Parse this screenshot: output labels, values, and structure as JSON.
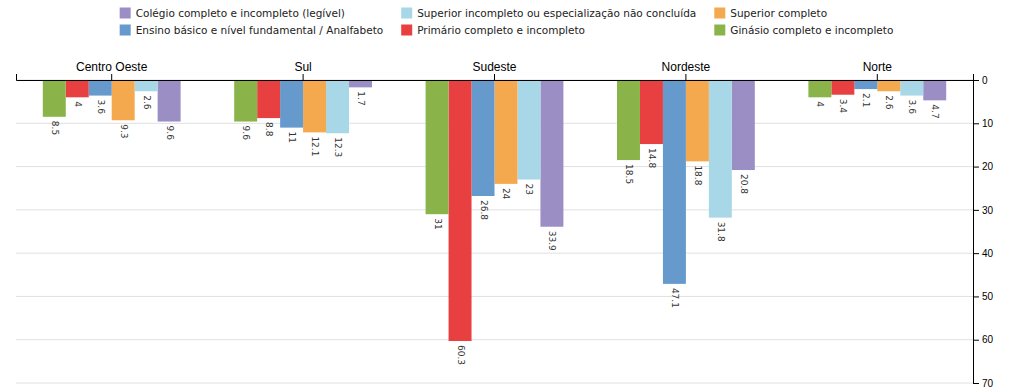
{
  "chart_data": {
    "type": "bar",
    "categories": [
      "Norte",
      "Nordeste",
      "Sudeste",
      "Sul",
      "Centro Oeste"
    ],
    "series": [
      {
        "name": "Colégio completo e incompleto (legível)",
        "color": "#9b8ec4",
        "values": [
          4.7,
          20.8,
          33.9,
          1.7,
          9.6
        ]
      },
      {
        "name": "Superior incompleto ou especialização não concluída",
        "color": "#a8d8e8",
        "values": [
          3.6,
          31.8,
          23.0,
          12.3,
          2.6
        ]
      },
      {
        "name": "Superior completo",
        "color": "#f5a94e",
        "values": [
          2.6,
          18.8,
          24.0,
          12.1,
          9.3
        ]
      },
      {
        "name": "Ensino básico e nível fundamental / Analfabeto",
        "color": "#6699cc",
        "values": [
          2.1,
          47.1,
          26.8,
          11.0,
          3.6
        ]
      },
      {
        "name": "Primário completo e incompleto",
        "color": "#e84040",
        "values": [
          3.4,
          14.8,
          60.3,
          8.8,
          4.0
        ]
      },
      {
        "name": "Ginásio completo e incompleto",
        "color": "#8ab34a",
        "values": [
          4.0,
          18.5,
          31.0,
          9.6,
          8.5
        ]
      }
    ],
    "ylim": [
      0,
      70
    ],
    "yticks": [
      0,
      10,
      20,
      30,
      40,
      50,
      60,
      70
    ],
    "grid": true,
    "data_labels": true
  }
}
